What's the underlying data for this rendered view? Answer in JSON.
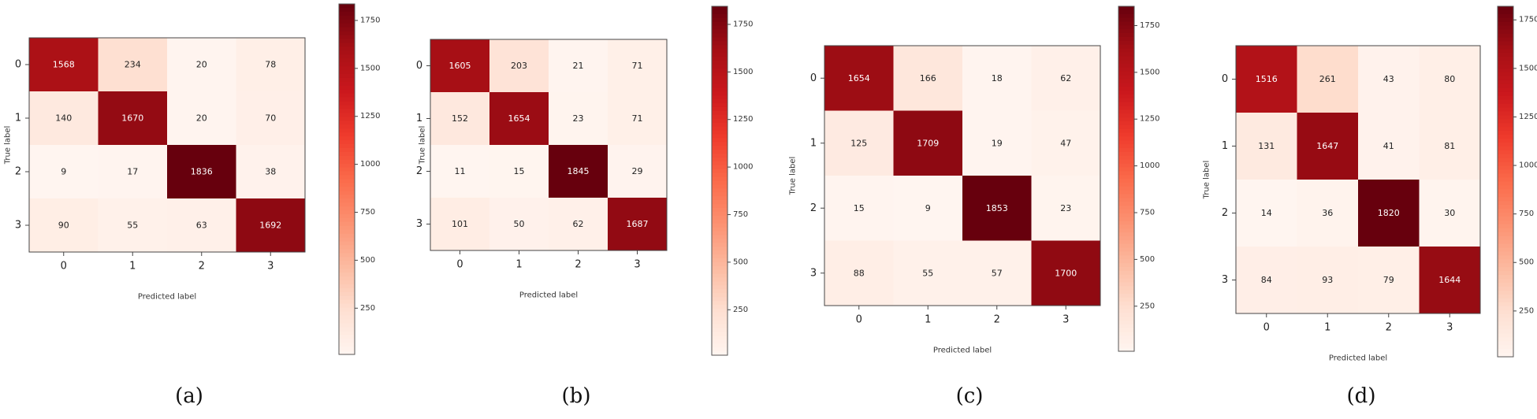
{
  "chart_data": [
    {
      "type": "heatmap",
      "caption": "(a)",
      "xlabel": "Predicted label",
      "ylabel": "True label",
      "x_ticks": [
        "0",
        "1",
        "2",
        "3"
      ],
      "y_ticks": [
        "0",
        "1",
        "2",
        "3"
      ],
      "matrix": [
        [
          1568,
          234,
          20,
          78
        ],
        [
          140,
          1670,
          20,
          70
        ],
        [
          9,
          17,
          1836,
          38
        ],
        [
          90,
          55,
          63,
          1692
        ]
      ],
      "colorbar_ticks": [
        "250",
        "500",
        "750",
        "1000",
        "1250",
        "1500",
        "1750"
      ],
      "colorbar_range": [
        9,
        1836
      ],
      "colormap": "Reds"
    },
    {
      "type": "heatmap",
      "caption": "(b)",
      "xlabel": "Predicted label",
      "ylabel": "True label",
      "x_ticks": [
        "0",
        "1",
        "2",
        "3"
      ],
      "y_ticks": [
        "0",
        "1",
        "2",
        "3"
      ],
      "matrix": [
        [
          1605,
          203,
          21,
          71
        ],
        [
          152,
          1654,
          23,
          71
        ],
        [
          11,
          15,
          1845,
          29
        ],
        [
          101,
          50,
          62,
          1687
        ]
      ],
      "colorbar_ticks": [
        "250",
        "500",
        "750",
        "1000",
        "1250",
        "1500",
        "1750"
      ],
      "colorbar_range": [
        11,
        1845
      ],
      "colormap": "Reds"
    },
    {
      "type": "heatmap",
      "caption": "(c)",
      "xlabel": "Predicted label",
      "ylabel": "True label",
      "x_ticks": [
        "0",
        "1",
        "2",
        "3"
      ],
      "y_ticks": [
        "0",
        "1",
        "2",
        "3"
      ],
      "matrix": [
        [
          1654,
          166,
          18,
          62
        ],
        [
          125,
          1709,
          19,
          47
        ],
        [
          15,
          9,
          1853,
          23
        ],
        [
          88,
          55,
          57,
          1700
        ]
      ],
      "colorbar_ticks": [
        "250",
        "500",
        "750",
        "1000",
        "1250",
        "1500",
        "1750"
      ],
      "colorbar_range": [
        9,
        1853
      ],
      "colormap": "Reds"
    },
    {
      "type": "heatmap",
      "caption": "(d)",
      "xlabel": "Predicted label",
      "ylabel": "True label",
      "x_ticks": [
        "0",
        "1",
        "2",
        "3"
      ],
      "y_ticks": [
        "0",
        "1",
        "2",
        "3"
      ],
      "matrix": [
        [
          1516,
          261,
          43,
          80
        ],
        [
          131,
          1647,
          41,
          81
        ],
        [
          14,
          36,
          1820,
          30
        ],
        [
          84,
          93,
          79,
          1644
        ]
      ],
      "colorbar_ticks": [
        "250",
        "500",
        "750",
        "1000",
        "1250",
        "1500",
        "1750"
      ],
      "colorbar_range": [
        14,
        1820
      ],
      "colormap": "Reds"
    }
  ]
}
